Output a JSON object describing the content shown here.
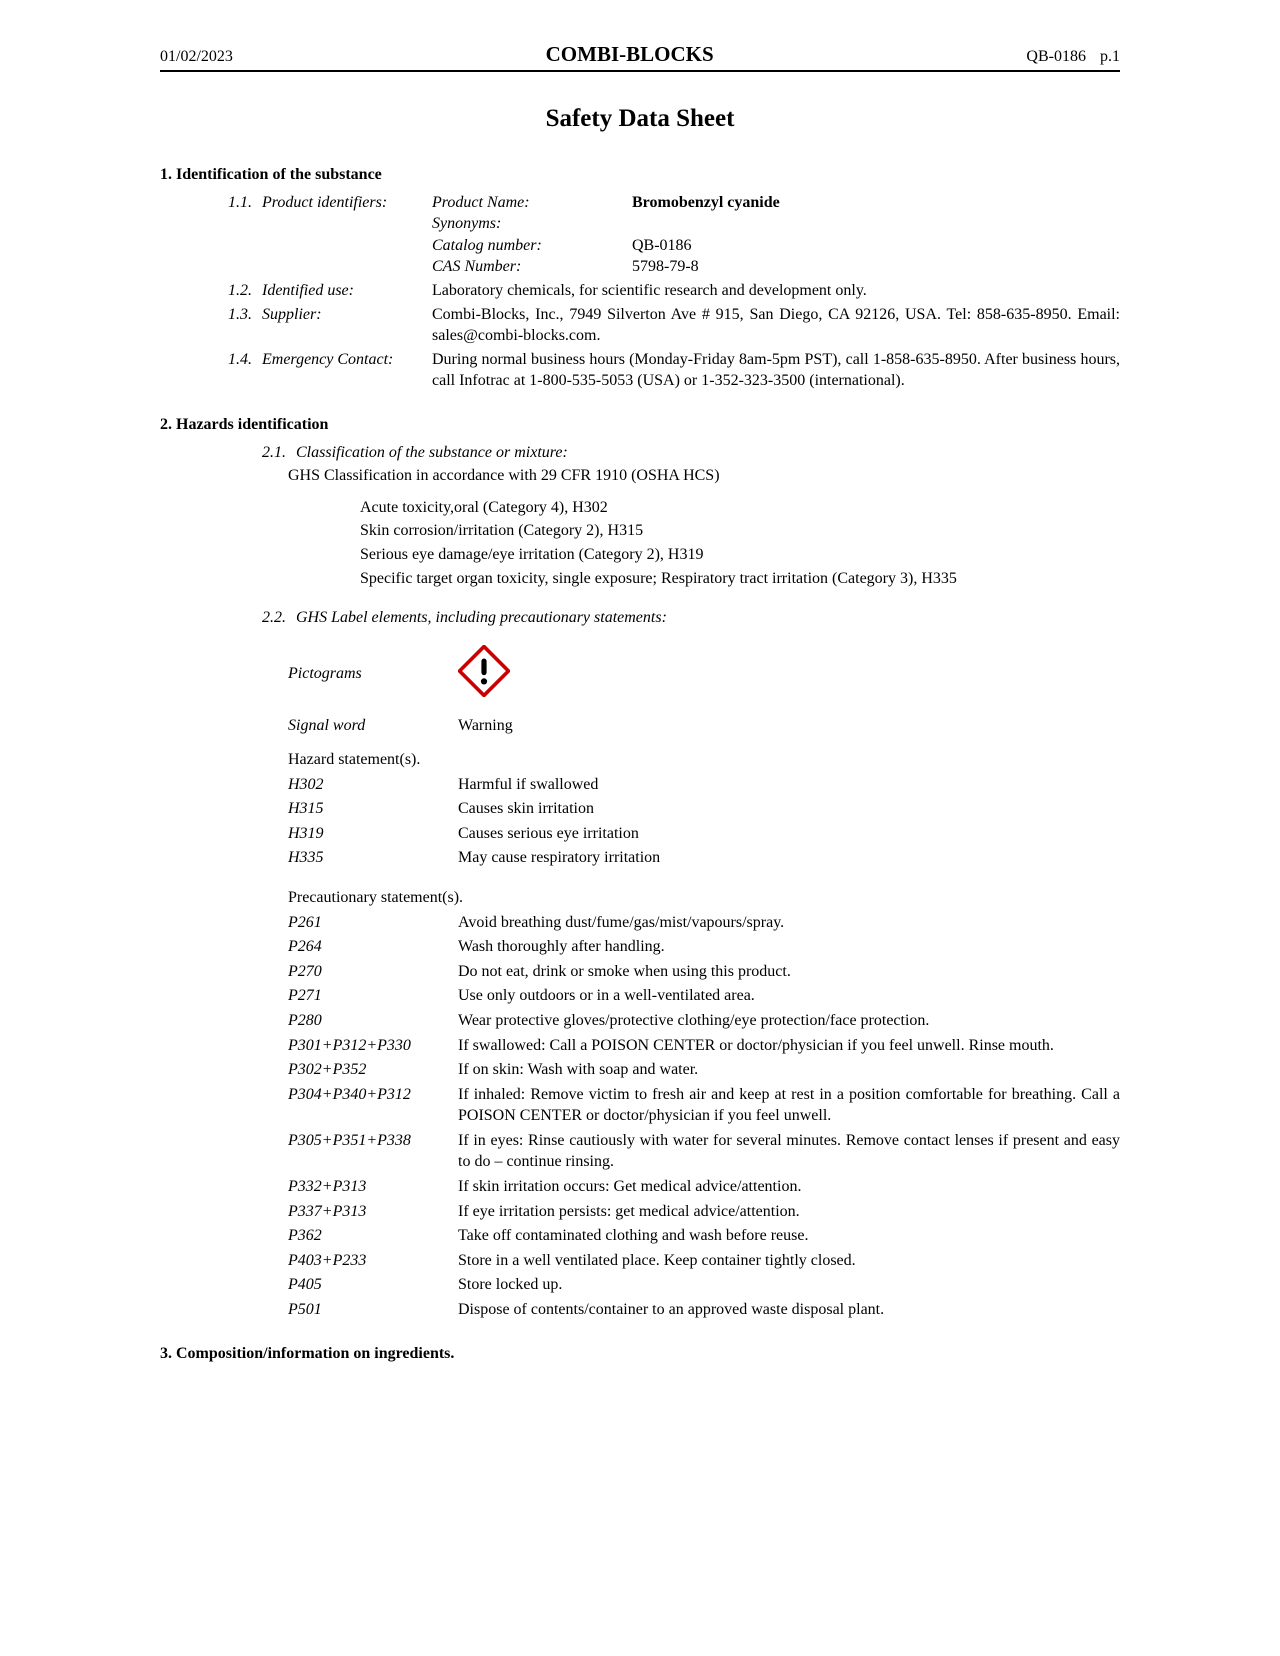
{
  "header": {
    "date": "01/02/2023",
    "company": "COMBI-BLOCKS",
    "code": "QB-0186",
    "page": "p.1"
  },
  "title": "Safety Data Sheet",
  "section1": {
    "heading": "1. Identification of the substance",
    "s11": {
      "num": "1.1.",
      "label": "Product identifiers:",
      "productNameKey": "Product Name:",
      "productNameVal": "Bromobenzyl cyanide",
      "synonymsKey": "Synonyms:",
      "synonymsVal": "",
      "catalogKey": "Catalog number:",
      "catalogVal": "QB-0186",
      "casKey": "CAS Number:",
      "casVal": "5798-79-8"
    },
    "s12": {
      "num": "1.2.",
      "label": "Identified use:",
      "body": "Laboratory chemicals, for scientific research and development only."
    },
    "s13": {
      "num": "1.3.",
      "label": "Supplier:",
      "body": "Combi-Blocks, Inc., 7949 Silverton Ave # 915, San Diego, CA 92126, USA. Tel: 858-635-8950. Email: sales@combi-blocks.com."
    },
    "s14": {
      "num": "1.4.",
      "label": "Emergency Contact:",
      "body": "During normal business hours (Monday-Friday 8am-5pm PST), call 1-858-635-8950. After business hours, call Infotrac at 1-800-535-5053 (USA) or 1-352-323-3500 (international)."
    }
  },
  "section2": {
    "heading": "2. Hazards identification",
    "s21": {
      "num": "2.1.",
      "title": "Classification of the substance or mixture:",
      "sub": "GHS Classification in accordance with 29 CFR 1910 (OSHA HCS)",
      "items": [
        "Acute toxicity,oral (Category 4), H302",
        "Skin corrosion/irritation (Category 2), H315",
        "Serious eye damage/eye irritation (Category 2), H319",
        "Specific target organ toxicity, single exposure; Respiratory tract irritation (Category 3), H335"
      ]
    },
    "s22": {
      "num": "2.2.",
      "title": "GHS Label elements, including precautionary statements:",
      "pictogramsLabel": "Pictograms",
      "signalWordLabel": "Signal word",
      "signalWordVal": "Warning",
      "hazardHeading": "Hazard statement(s).",
      "hazard": [
        {
          "code": "H302",
          "text": "Harmful if swallowed"
        },
        {
          "code": "H315",
          "text": "Causes skin irritation"
        },
        {
          "code": "H319",
          "text": "Causes serious eye irritation"
        },
        {
          "code": "H335",
          "text": "May cause respiratory irritation"
        }
      ],
      "precautionHeading": "Precautionary statement(s).",
      "precaution": [
        {
          "code": "P261",
          "text": "Avoid breathing dust/fume/gas/mist/vapours/spray."
        },
        {
          "code": "P264",
          "text": "Wash thoroughly after handling."
        },
        {
          "code": "P270",
          "text": "Do not eat, drink or smoke when using this product."
        },
        {
          "code": "P271",
          "text": "Use only outdoors or in a well-ventilated area."
        },
        {
          "code": "P280",
          "text": "Wear protective gloves/protective clothing/eye protection/face protection."
        },
        {
          "code": "P301+P312+P330",
          "text": "If swallowed: Call a POISON CENTER or doctor/physician if you feel unwell. Rinse mouth."
        },
        {
          "code": "P302+P352",
          "text": "If on skin: Wash with soap and water."
        },
        {
          "code": "P304+P340+P312",
          "text": "If inhaled: Remove victim to fresh air and keep at rest in a position comfortable for breathing. Call a POISON CENTER or doctor/physician if you feel unwell."
        },
        {
          "code": "P305+P351+P338",
          "text": "If in eyes: Rinse cautiously with water for several minutes. Remove contact lenses if present and easy to do – continue rinsing."
        },
        {
          "code": "P332+P313",
          "text": "If skin irritation occurs: Get medical advice/attention."
        },
        {
          "code": "P337+P313",
          "text": "If eye irritation persists: get medical advice/attention."
        },
        {
          "code": "P362",
          "text": "Take off contaminated clothing and wash before reuse."
        },
        {
          "code": "P403+P233",
          "text": "Store in a well ventilated place. Keep container tightly closed."
        },
        {
          "code": "P405",
          "text": "Store locked up."
        },
        {
          "code": "P501",
          "text": "Dispose of contents/container to an approved waste disposal plant."
        }
      ]
    }
  },
  "section3": {
    "heading": "3. Composition/information on ingredients."
  },
  "colors": {
    "pictogram_border": "#cc0000",
    "pictogram_fill": "#ffffff",
    "text": "#000000"
  }
}
